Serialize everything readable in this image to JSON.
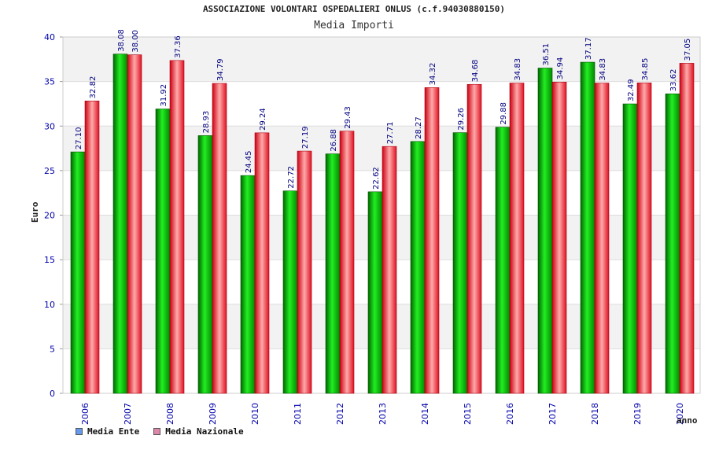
{
  "chart_data": {
    "type": "bar",
    "title": "ASSOCIAZIONE VOLONTARI OSPEDALIERI ONLUS (c.f.94030880150)",
    "subtitle": "Media Importi",
    "xlabel": "anno",
    "ylabel": "Euro",
    "ylim": [
      0,
      40
    ],
    "yticks": [
      0,
      5,
      10,
      15,
      20,
      25,
      30,
      35,
      40
    ],
    "grid": true,
    "legend_position": "bottom-left",
    "categories": [
      "2006",
      "2007",
      "2008",
      "2009",
      "2010",
      "2011",
      "2012",
      "2013",
      "2014",
      "2015",
      "2016",
      "2017",
      "2018",
      "2019",
      "2020"
    ],
    "series": [
      {
        "name": "Media Ente",
        "color": "#00aa00",
        "legend_color": "#6699ee",
        "values": [
          27.1,
          38.08,
          31.92,
          28.93,
          24.45,
          22.72,
          26.88,
          22.62,
          28.27,
          29.26,
          29.88,
          36.51,
          37.17,
          32.49,
          33.62
        ],
        "labels": [
          "27.10",
          "38.08",
          "31.92",
          "28.93",
          "24.45",
          "22.72",
          "26.88",
          "22.62",
          "28.27",
          "29.26",
          "29.88",
          "36.51",
          "37.17",
          "32.49",
          "33.62"
        ]
      },
      {
        "name": "Media Nazionale",
        "color": "#ee2233",
        "legend_color": "#dd88aa",
        "values": [
          32.82,
          38.0,
          37.36,
          34.79,
          29.24,
          27.19,
          29.43,
          27.71,
          34.32,
          34.68,
          34.83,
          34.94,
          34.83,
          34.85,
          37.05
        ],
        "labels": [
          "32.82",
          "38.00",
          "37.36",
          "34.79",
          "29.24",
          "27.19",
          "29.43",
          "27.71",
          "34.32",
          "34.68",
          "34.83",
          "34.94",
          "34.83",
          "34.85",
          "37.05"
        ]
      }
    ]
  }
}
